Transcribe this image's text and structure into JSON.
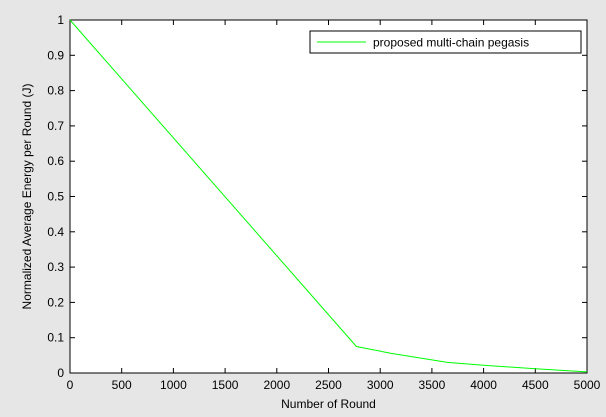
{
  "chart_data": {
    "type": "line",
    "xlabel": "Number of Round",
    "ylabel": "Normalized Average Energy per Round (J)",
    "xlim": [
      0,
      5000
    ],
    "ylim": [
      0,
      1
    ],
    "x_ticks": [
      "0",
      "500",
      "1000",
      "1500",
      "2000",
      "2500",
      "3000",
      "3500",
      "4000",
      "4500",
      "5000"
    ],
    "y_ticks": [
      "0",
      "0.1",
      "0.2",
      "0.3",
      "0.4",
      "0.5",
      "0.6",
      "0.7",
      "0.8",
      "0.9",
      "1"
    ],
    "grid": false,
    "legend_position": "top-right",
    "series": [
      {
        "name": "proposed multi-chain pegasis",
        "color": "#00ff00",
        "x": [
          0,
          2770,
          3100,
          3650,
          4000,
          4500,
          5000
        ],
        "y": [
          1.0,
          0.075,
          0.056,
          0.03,
          0.022,
          0.012,
          0.003
        ]
      }
    ]
  }
}
